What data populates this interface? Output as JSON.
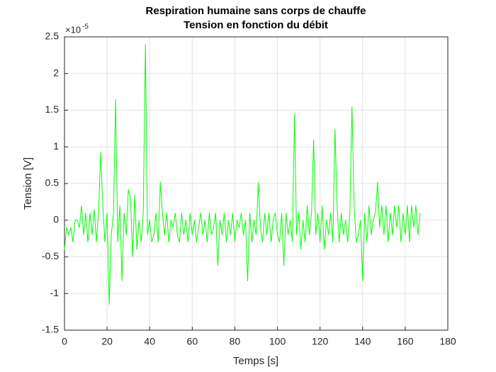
{
  "chart_data": {
    "type": "line",
    "title": "Respiration humaine sans corps de chauffe",
    "subtitle": "Tension en fonction du débit",
    "x_label": "Temps [s]",
    "y_label": "Tension [V]",
    "y_multiplier": {
      "base": "×10",
      "exponent": "-5"
    },
    "xlim": [
      0,
      180
    ],
    "xticks": [
      0,
      20,
      40,
      60,
      80,
      100,
      120,
      140,
      160,
      180
    ],
    "ylim": [
      -1.5,
      2.5
    ],
    "yticks": [
      -1.5,
      -1,
      -0.5,
      0,
      0.5,
      1,
      1.5,
      2,
      2.5
    ],
    "grid": true,
    "x": [
      0,
      1,
      2,
      3,
      4,
      5,
      6,
      7,
      8,
      9,
      10,
      11,
      12,
      13,
      14,
      15,
      16,
      17,
      18,
      19,
      20,
      21,
      22,
      23,
      24,
      25,
      26,
      27,
      28,
      29,
      30,
      31,
      32,
      33,
      34,
      35,
      36,
      37,
      38,
      39,
      40,
      41,
      42,
      43,
      44,
      45,
      46,
      47,
      48,
      49,
      50,
      51,
      52,
      53,
      54,
      55,
      56,
      57,
      58,
      59,
      60,
      61,
      62,
      63,
      64,
      65,
      66,
      67,
      68,
      69,
      70,
      71,
      72,
      73,
      74,
      75,
      76,
      77,
      78,
      79,
      80,
      81,
      82,
      83,
      84,
      85,
      86,
      87,
      88,
      89,
      90,
      91,
      92,
      93,
      94,
      95,
      96,
      97,
      98,
      99,
      100,
      101,
      102,
      103,
      104,
      105,
      106,
      107,
      108,
      109,
      110,
      111,
      112,
      113,
      114,
      115,
      116,
      117,
      118,
      119,
      120,
      121,
      122,
      123,
      124,
      125,
      126,
      127,
      128,
      129,
      130,
      131,
      132,
      133,
      134,
      135,
      136,
      137,
      138,
      139,
      140,
      141,
      142,
      143,
      144,
      145,
      146,
      147,
      148,
      149,
      150,
      151,
      152,
      153,
      154,
      155,
      156,
      157,
      158,
      159,
      160,
      161,
      162,
      163,
      164,
      165,
      166,
      167
    ],
    "series": [
      {
        "color": "#00ff00",
        "values": [
          -0.4,
          -0.1,
          -0.2,
          -0.1,
          -0.3,
          0,
          0,
          -0.1,
          0.2,
          -0.2,
          0.1,
          -0.3,
          0.1,
          -0.2,
          0.15,
          -0.3,
          0.1,
          0.93,
          0.2,
          -0.3,
          0.1,
          -1.15,
          -0.2,
          0.1,
          1.65,
          -0.3,
          0.2,
          -0.83,
          0.1,
          -0.2,
          0.42,
          0.3,
          -0.5,
          0.35,
          -0.4,
          0,
          -0.3,
          0.1,
          2.4,
          -0.2,
          0,
          -0.3,
          -0.2,
          0.1,
          -0.3,
          0.52,
          0.1,
          -0.2,
          0.1,
          -0.3,
          0,
          -0.1,
          0.1,
          -0.2,
          -0.3,
          0.1,
          -0.2,
          0,
          -0.3,
          0.1,
          -0.2,
          0,
          -0.3,
          -0.1,
          0.1,
          -0.2,
          0,
          -0.3,
          0.1,
          -0.2,
          -0.1,
          0.1,
          -0.62,
          0,
          -0.2,
          0.1,
          -0.3,
          0,
          -0.2,
          0.1,
          -0.3,
          0,
          -0.1,
          0.1,
          -0.2,
          0,
          -0.83,
          0.1,
          -0.3,
          0,
          -0.2,
          0.52,
          -0.1,
          -0.3,
          0.1,
          -0.2,
          0.1,
          -0.3,
          0,
          0.1,
          -0.2,
          -0.3,
          0.1,
          -0.62,
          0.1,
          -0.2,
          0,
          -0.3,
          1.45,
          -0.2,
          0.1,
          -0.4,
          0,
          -0.3,
          0.2,
          -0.2,
          0.1,
          1.1,
          -0.2,
          0.1,
          -0.3,
          0.2,
          -0.4,
          0,
          -0.2,
          0.1,
          -0.3,
          1.25,
          0.2,
          -0.3,
          0.1,
          -0.2,
          0,
          -0.3,
          0.1,
          1.55,
          0.2,
          -0.3,
          -0.2,
          0,
          -0.83,
          0.1,
          -0.3,
          0.2,
          -0.2,
          0,
          0.1,
          0.52,
          -0.1,
          0.2,
          -0.2,
          0.2,
          -0.3,
          0.1,
          -0.2,
          0.2,
          -0.1,
          0.2,
          -0.3,
          0.1,
          -0.2,
          0.2,
          -0.3,
          0.2,
          -0.1,
          0.2,
          -0.2,
          0.1
        ]
      }
    ]
  }
}
